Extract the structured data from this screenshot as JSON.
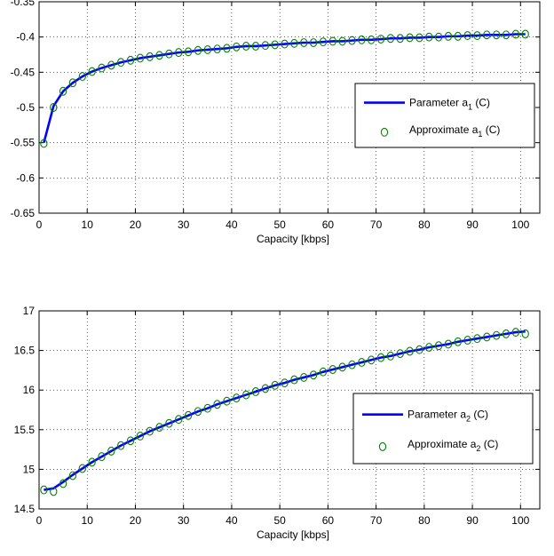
{
  "chart_data": [
    {
      "type": "line",
      "xlabel": "Capacity [kbps]",
      "ylabel": "",
      "xlim": [
        0,
        104
      ],
      "ylim": [
        -0.65,
        -0.35
      ],
      "xticks": [
        0,
        10,
        20,
        30,
        40,
        50,
        60,
        70,
        80,
        90,
        100
      ],
      "yticks": [
        -0.65,
        -0.6,
        -0.55,
        -0.5,
        -0.45,
        -0.4,
        -0.35
      ],
      "xtick_labels": [
        "0",
        "10",
        "20",
        "30",
        "40",
        "50",
        "60",
        "70",
        "80",
        "90",
        "100"
      ],
      "ytick_labels": [
        "-0.65",
        "-0.6",
        "-0.55",
        "-0.5",
        "-0.45",
        "-0.4",
        "-0.35"
      ],
      "grid": true,
      "legend_position": "center-right",
      "series": [
        {
          "name": "Parameter a₁ (C)",
          "legend_main": "Parameter a",
          "legend_sub": "1",
          "legend_tail": " (C)",
          "style": "line",
          "color": "#0000ff",
          "x": [
            1,
            3,
            5,
            7,
            9,
            11,
            13,
            15,
            17,
            19,
            21,
            23,
            25,
            27,
            29,
            31,
            33,
            35,
            37,
            39,
            41,
            43,
            45,
            47,
            49,
            51,
            53,
            55,
            57,
            59,
            61,
            63,
            65,
            67,
            69,
            71,
            73,
            75,
            77,
            79,
            81,
            83,
            85,
            87,
            89,
            91,
            93,
            95,
            97,
            99,
            101
          ],
          "y": [
            -0.55,
            -0.498,
            -0.477,
            -0.465,
            -0.456,
            -0.449,
            -0.444,
            -0.44,
            -0.436,
            -0.433,
            -0.43,
            -0.428,
            -0.426,
            -0.424,
            -0.422,
            -0.421,
            -0.419,
            -0.418,
            -0.417,
            -0.416,
            -0.414,
            -0.413,
            -0.413,
            -0.412,
            -0.411,
            -0.41,
            -0.409,
            -0.408,
            -0.408,
            -0.407,
            -0.406,
            -0.406,
            -0.405,
            -0.404,
            -0.404,
            -0.403,
            -0.402,
            -0.402,
            -0.401,
            -0.401,
            -0.4,
            -0.4,
            -0.399,
            -0.399,
            -0.398,
            -0.398,
            -0.397,
            -0.397,
            -0.397,
            -0.396,
            -0.396
          ]
        },
        {
          "name": "Approximate a₁ (C)",
          "legend_main": "Approximate a",
          "legend_sub": "1",
          "legend_tail": " (C)",
          "style": "marker",
          "color": "#008000",
          "x": [
            1,
            3,
            5,
            7,
            9,
            11,
            13,
            15,
            17,
            19,
            21,
            23,
            25,
            27,
            29,
            31,
            33,
            35,
            37,
            39,
            41,
            43,
            45,
            47,
            49,
            51,
            53,
            55,
            57,
            59,
            61,
            63,
            65,
            67,
            69,
            71,
            73,
            75,
            77,
            79,
            81,
            83,
            85,
            87,
            89,
            91,
            93,
            95,
            97,
            99,
            101
          ],
          "y": [
            -0.551,
            -0.5,
            -0.477,
            -0.465,
            -0.456,
            -0.449,
            -0.444,
            -0.44,
            -0.436,
            -0.433,
            -0.43,
            -0.428,
            -0.426,
            -0.424,
            -0.422,
            -0.421,
            -0.419,
            -0.418,
            -0.417,
            -0.416,
            -0.414,
            -0.413,
            -0.413,
            -0.412,
            -0.411,
            -0.41,
            -0.409,
            -0.408,
            -0.408,
            -0.407,
            -0.406,
            -0.406,
            -0.405,
            -0.404,
            -0.404,
            -0.403,
            -0.402,
            -0.402,
            -0.401,
            -0.401,
            -0.4,
            -0.4,
            -0.399,
            -0.399,
            -0.398,
            -0.398,
            -0.397,
            -0.397,
            -0.397,
            -0.396,
            -0.396
          ]
        }
      ]
    },
    {
      "type": "line",
      "xlabel": "Capacity [kbps]",
      "ylabel": "",
      "xlim": [
        0,
        104
      ],
      "ylim": [
        14.5,
        17
      ],
      "xticks": [
        0,
        10,
        20,
        30,
        40,
        50,
        60,
        70,
        80,
        90,
        100
      ],
      "yticks": [
        14.5,
        15,
        15.5,
        16,
        16.5,
        17
      ],
      "xtick_labels": [
        "0",
        "10",
        "20",
        "30",
        "40",
        "50",
        "60",
        "70",
        "80",
        "90",
        "100"
      ],
      "ytick_labels": [
        "14.5",
        "15",
        "15.5",
        "16",
        "16.5",
        "17"
      ],
      "grid": true,
      "legend_position": "center-right",
      "series": [
        {
          "name": "Parameter a₂ (C)",
          "legend_main": "Parameter a",
          "legend_sub": "2",
          "legend_tail": " (C)",
          "style": "line",
          "color": "#0000ff",
          "x": [
            1,
            3,
            5,
            7,
            9,
            11,
            13,
            15,
            17,
            19,
            21,
            23,
            25,
            27,
            29,
            31,
            33,
            35,
            37,
            39,
            41,
            43,
            45,
            47,
            49,
            51,
            53,
            55,
            57,
            59,
            61,
            63,
            65,
            67,
            69,
            71,
            73,
            75,
            77,
            79,
            81,
            83,
            85,
            87,
            89,
            91,
            93,
            95,
            97,
            99,
            101
          ],
          "y": [
            14.74,
            14.76,
            14.84,
            14.93,
            15.01,
            15.09,
            15.16,
            15.23,
            15.3,
            15.36,
            15.42,
            15.48,
            15.53,
            15.58,
            15.63,
            15.68,
            15.73,
            15.77,
            15.82,
            15.86,
            15.9,
            15.94,
            15.98,
            16.02,
            16.06,
            16.09,
            16.13,
            16.16,
            16.19,
            16.23,
            16.26,
            16.29,
            16.32,
            16.35,
            16.38,
            16.41,
            16.43,
            16.46,
            16.49,
            16.51,
            16.54,
            16.56,
            16.58,
            16.61,
            16.63,
            16.65,
            16.67,
            16.69,
            16.71,
            16.73,
            16.74
          ]
        },
        {
          "name": "Approximate a₂ (C)",
          "legend_main": "Approximate a",
          "legend_sub": "2",
          "legend_tail": " (C)",
          "style": "marker",
          "color": "#008000",
          "x": [
            1,
            3,
            5,
            7,
            9,
            11,
            13,
            15,
            17,
            19,
            21,
            23,
            25,
            27,
            29,
            31,
            33,
            35,
            37,
            39,
            41,
            43,
            45,
            47,
            49,
            51,
            53,
            55,
            57,
            59,
            61,
            63,
            65,
            67,
            69,
            71,
            73,
            75,
            77,
            79,
            81,
            83,
            85,
            87,
            89,
            91,
            93,
            95,
            97,
            99,
            101
          ],
          "y": [
            14.74,
            14.72,
            14.82,
            14.92,
            15.01,
            15.09,
            15.16,
            15.23,
            15.3,
            15.36,
            15.42,
            15.48,
            15.53,
            15.58,
            15.63,
            15.68,
            15.73,
            15.77,
            15.82,
            15.86,
            15.9,
            15.94,
            15.98,
            16.02,
            16.06,
            16.09,
            16.13,
            16.16,
            16.19,
            16.23,
            16.26,
            16.29,
            16.32,
            16.35,
            16.38,
            16.41,
            16.43,
            16.46,
            16.49,
            16.51,
            16.54,
            16.56,
            16.58,
            16.61,
            16.63,
            16.65,
            16.67,
            16.69,
            16.71,
            16.73,
            16.71
          ]
        }
      ]
    }
  ]
}
